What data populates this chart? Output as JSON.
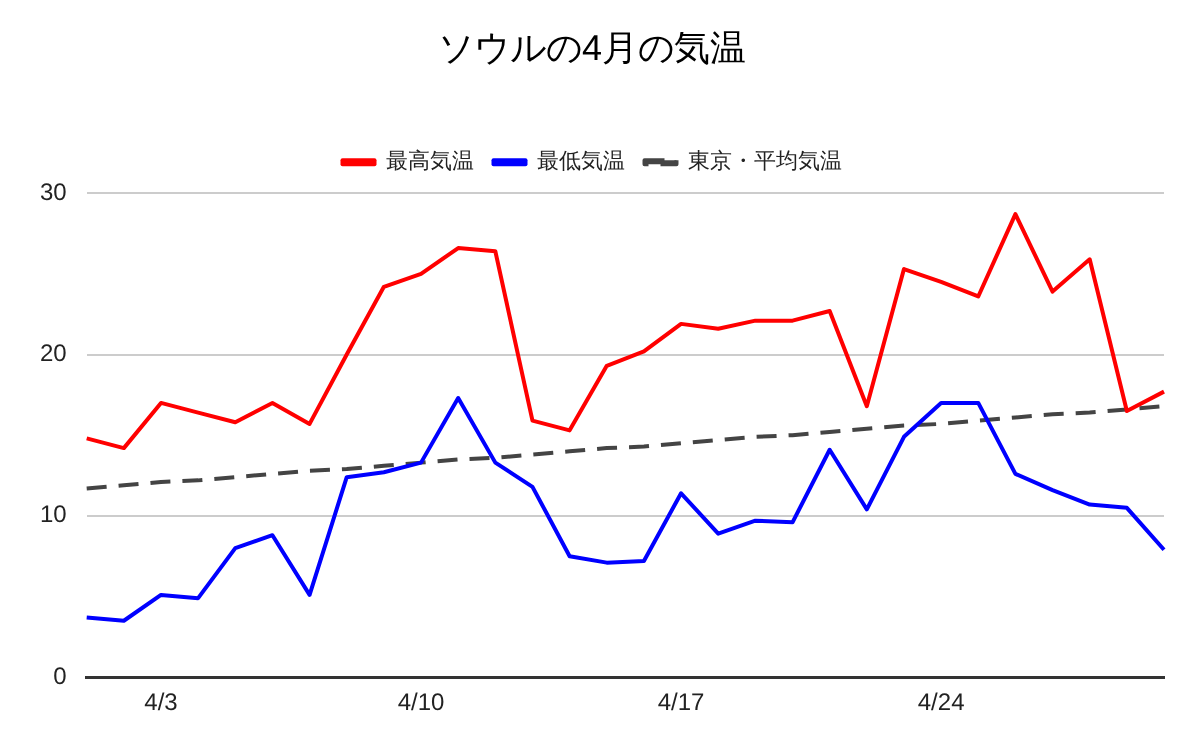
{
  "chart_data": {
    "type": "line",
    "title": "ソウルの4月の気温",
    "categories": [
      null,
      null,
      "4/3",
      null,
      null,
      null,
      null,
      null,
      null,
      "4/10",
      null,
      null,
      null,
      null,
      null,
      null,
      "4/17",
      null,
      null,
      null,
      null,
      null,
      null,
      "4/24",
      null,
      null,
      null,
      null,
      null,
      null
    ],
    "series": [
      {
        "name": "最高気温",
        "color": "#ff0000",
        "values": [
          14.8,
          14.2,
          17.0,
          16.4,
          15.8,
          17.0,
          15.7,
          20.0,
          24.2,
          25.0,
          26.6,
          26.4,
          15.9,
          15.3,
          19.3,
          20.2,
          21.9,
          21.6,
          22.1,
          22.1,
          22.7,
          16.8,
          25.3,
          24.5,
          23.6,
          28.7,
          23.9,
          25.9,
          16.5,
          17.7
        ]
      },
      {
        "name": "最低気温",
        "color": "#0000ff",
        "values": [
          3.7,
          3.5,
          5.1,
          4.9,
          8.0,
          8.8,
          5.1,
          12.4,
          12.7,
          13.3,
          17.3,
          13.3,
          11.8,
          7.5,
          7.1,
          7.2,
          11.4,
          8.9,
          9.7,
          9.6,
          14.1,
          10.4,
          14.9,
          17.0,
          17.0,
          12.6,
          11.6,
          10.7,
          10.5,
          7.9
        ]
      },
      {
        "name": "東京・平均気温",
        "color": "#444444",
        "line_style": "dashed",
        "values": [
          11.7,
          11.9,
          12.1,
          12.2,
          12.4,
          12.6,
          12.8,
          12.9,
          13.1,
          13.3,
          13.5,
          13.6,
          13.8,
          14.0,
          14.2,
          14.3,
          14.5,
          14.7,
          14.9,
          15.0,
          15.2,
          15.4,
          15.6,
          15.7,
          15.9,
          16.1,
          16.3,
          16.4,
          16.6,
          16.8
        ]
      }
    ],
    "ylim": [
      0,
      30
    ],
    "yticks": [
      0,
      10,
      20,
      30
    ],
    "grid": "y",
    "legend": "top",
    "marker": "none",
    "line_style": "solid"
  }
}
